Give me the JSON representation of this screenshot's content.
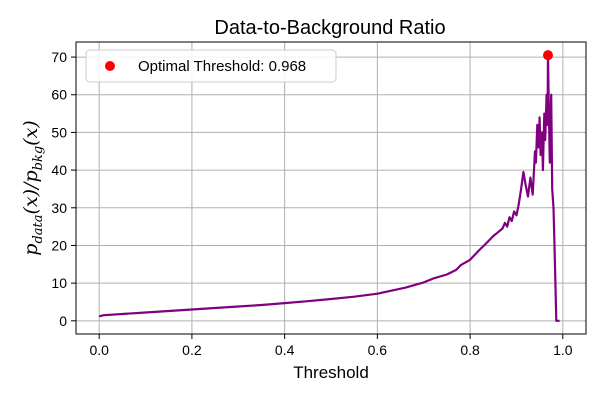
{
  "chart_data": {
    "type": "line",
    "title": "Data-to-Background Ratio",
    "xlabel": "Threshold",
    "ylabel": {
      "p1": "p",
      "sub1": "data",
      "mid": "(x)/",
      "p2": "p",
      "sub2": "bkg",
      "end": "(x)"
    },
    "xlim": [
      -0.05,
      1.05
    ],
    "ylim": [
      -3.5,
      74
    ],
    "xticks": [
      0.0,
      0.2,
      0.4,
      0.6,
      0.8,
      1.0
    ],
    "xtick_labels": [
      "0.0",
      "0.2",
      "0.4",
      "0.6",
      "0.8",
      "1.0"
    ],
    "yticks": [
      0,
      10,
      20,
      30,
      40,
      50,
      60,
      70
    ],
    "ytick_labels": [
      "0",
      "10",
      "20",
      "30",
      "40",
      "50",
      "60",
      "70"
    ],
    "grid": true,
    "legend_position": "top-left",
    "series": [
      {
        "color": "#800080",
        "x": [
          0.0,
          0.01,
          0.05,
          0.1,
          0.15,
          0.2,
          0.25,
          0.3,
          0.35,
          0.4,
          0.45,
          0.5,
          0.55,
          0.6,
          0.63,
          0.66,
          0.7,
          0.72,
          0.75,
          0.77,
          0.78,
          0.79,
          0.8,
          0.81,
          0.82,
          0.83,
          0.84,
          0.85,
          0.86,
          0.87,
          0.875,
          0.88,
          0.885,
          0.89,
          0.895,
          0.9,
          0.905,
          0.91,
          0.915,
          0.92,
          0.925,
          0.93,
          0.935,
          0.94,
          0.942,
          0.945,
          0.948,
          0.95,
          0.952,
          0.955,
          0.957,
          0.96,
          0.962,
          0.965,
          0.967,
          0.968,
          0.97,
          0.972,
          0.975,
          0.977,
          0.98,
          0.982,
          0.984,
          0.986,
          0.99,
          0.993
        ],
        "y": [
          1.2,
          1.5,
          1.8,
          2.2,
          2.6,
          3.0,
          3.4,
          3.8,
          4.2,
          4.7,
          5.2,
          5.8,
          6.4,
          7.2,
          8.0,
          8.8,
          10.2,
          11.2,
          12.3,
          13.5,
          14.8,
          15.5,
          16.2,
          17.5,
          18.8,
          20.0,
          21.2,
          22.5,
          23.5,
          24.5,
          26.0,
          25.0,
          27.5,
          26.5,
          29.0,
          28.0,
          31.0,
          35.0,
          39.5,
          36.0,
          33.0,
          38.0,
          33.5,
          45.0,
          42.0,
          52.0,
          46.0,
          54.0,
          44.0,
          50.0,
          40.0,
          55.0,
          48.0,
          60.0,
          52.0,
          70.5,
          55.0,
          42.0,
          60.0,
          35.0,
          30.0,
          20.0,
          10.0,
          0.0,
          0.0,
          0.0
        ]
      }
    ],
    "optimal_point": {
      "x": 0.968,
      "y": 70.5,
      "color": "#ff0000"
    },
    "legend_label": "Optimal Threshold: 0.968"
  }
}
